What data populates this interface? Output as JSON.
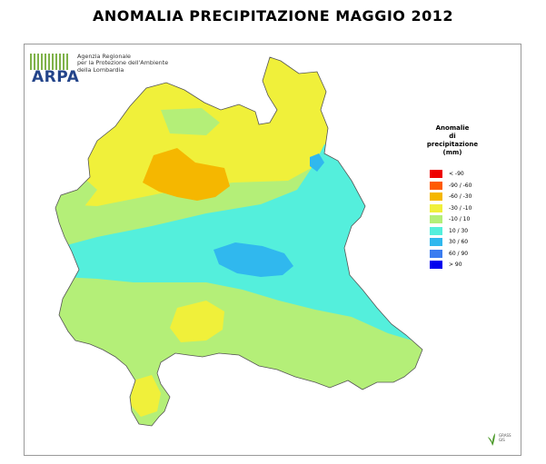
{
  "title": "ANOMALIA PRECIPITAZIONE MAGGIO 2012",
  "agency": {
    "logo_text": "ARPA",
    "name_lines": [
      "Agenzia Regionale",
      "per la Protezione dell'Ambiente",
      "della Lombardia"
    ],
    "brand_color": "#23448a",
    "bars_color": "#7fb24a"
  },
  "legend": {
    "title_lines": [
      "Anomalie",
      "di",
      "precipitazione",
      "(mm)"
    ],
    "items": [
      {
        "label": "< -90",
        "color": "#ee0000"
      },
      {
        "label": "-90 / -60",
        "color": "#ff5a00"
      },
      {
        "label": "-60 / -30",
        "color": "#f5b700"
      },
      {
        "label": "-30 / -10",
        "color": "#f0f03a"
      },
      {
        "label": "-10 / 10",
        "color": "#b4ef78"
      },
      {
        "label": "10 / 30",
        "color": "#54efdc"
      },
      {
        "label": "30 / 60",
        "color": "#30b8ee"
      },
      {
        "label": "60 / 90",
        "color": "#3b7df0"
      },
      {
        "label": "> 90",
        "color": "#0000ee"
      }
    ]
  },
  "footer_logo": {
    "line1": "GRASS",
    "line2": "GIS",
    "icon": "grass-gis-leaf-icon"
  }
}
